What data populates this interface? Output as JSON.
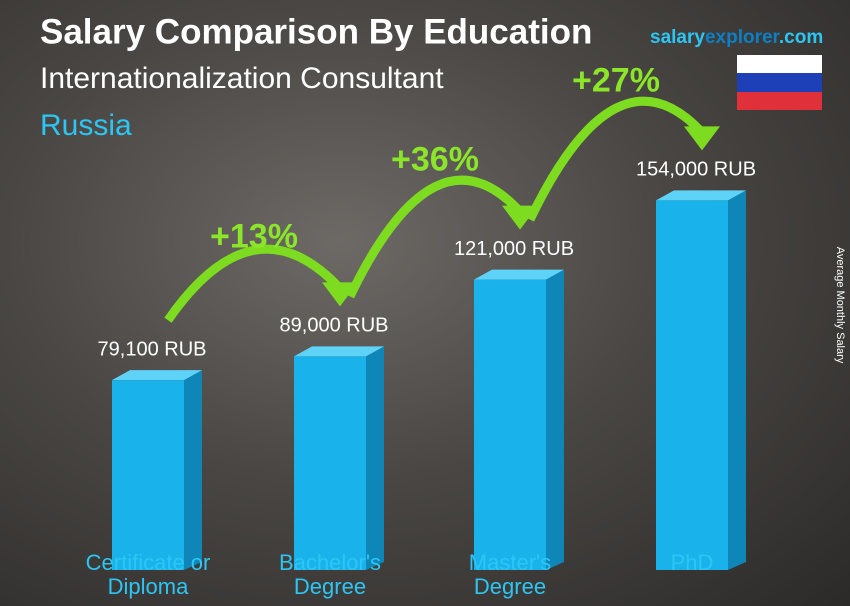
{
  "chart_data": {
    "type": "bar",
    "title": "Salary Comparison By Education",
    "subtitle": "Internationalization Consultant",
    "location": "Russia",
    "logo": [
      "salary",
      "explorer",
      ".com"
    ],
    "y_label": "Average Monthly Salary",
    "categories": [
      "Certificate or Diploma",
      "Bachelor's Degree",
      "Master's Degree",
      "PhD"
    ],
    "values": [
      79100,
      89000,
      121000,
      154000
    ],
    "value_labels": [
      "79,100 RUB",
      "89,000 RUB",
      "121,000 RUB",
      "154,000 RUB"
    ],
    "annotations": [
      "+13%",
      "+36%",
      "+27%"
    ],
    "color": "#1ab2ea",
    "ylim": [
      0,
      165000
    ]
  }
}
